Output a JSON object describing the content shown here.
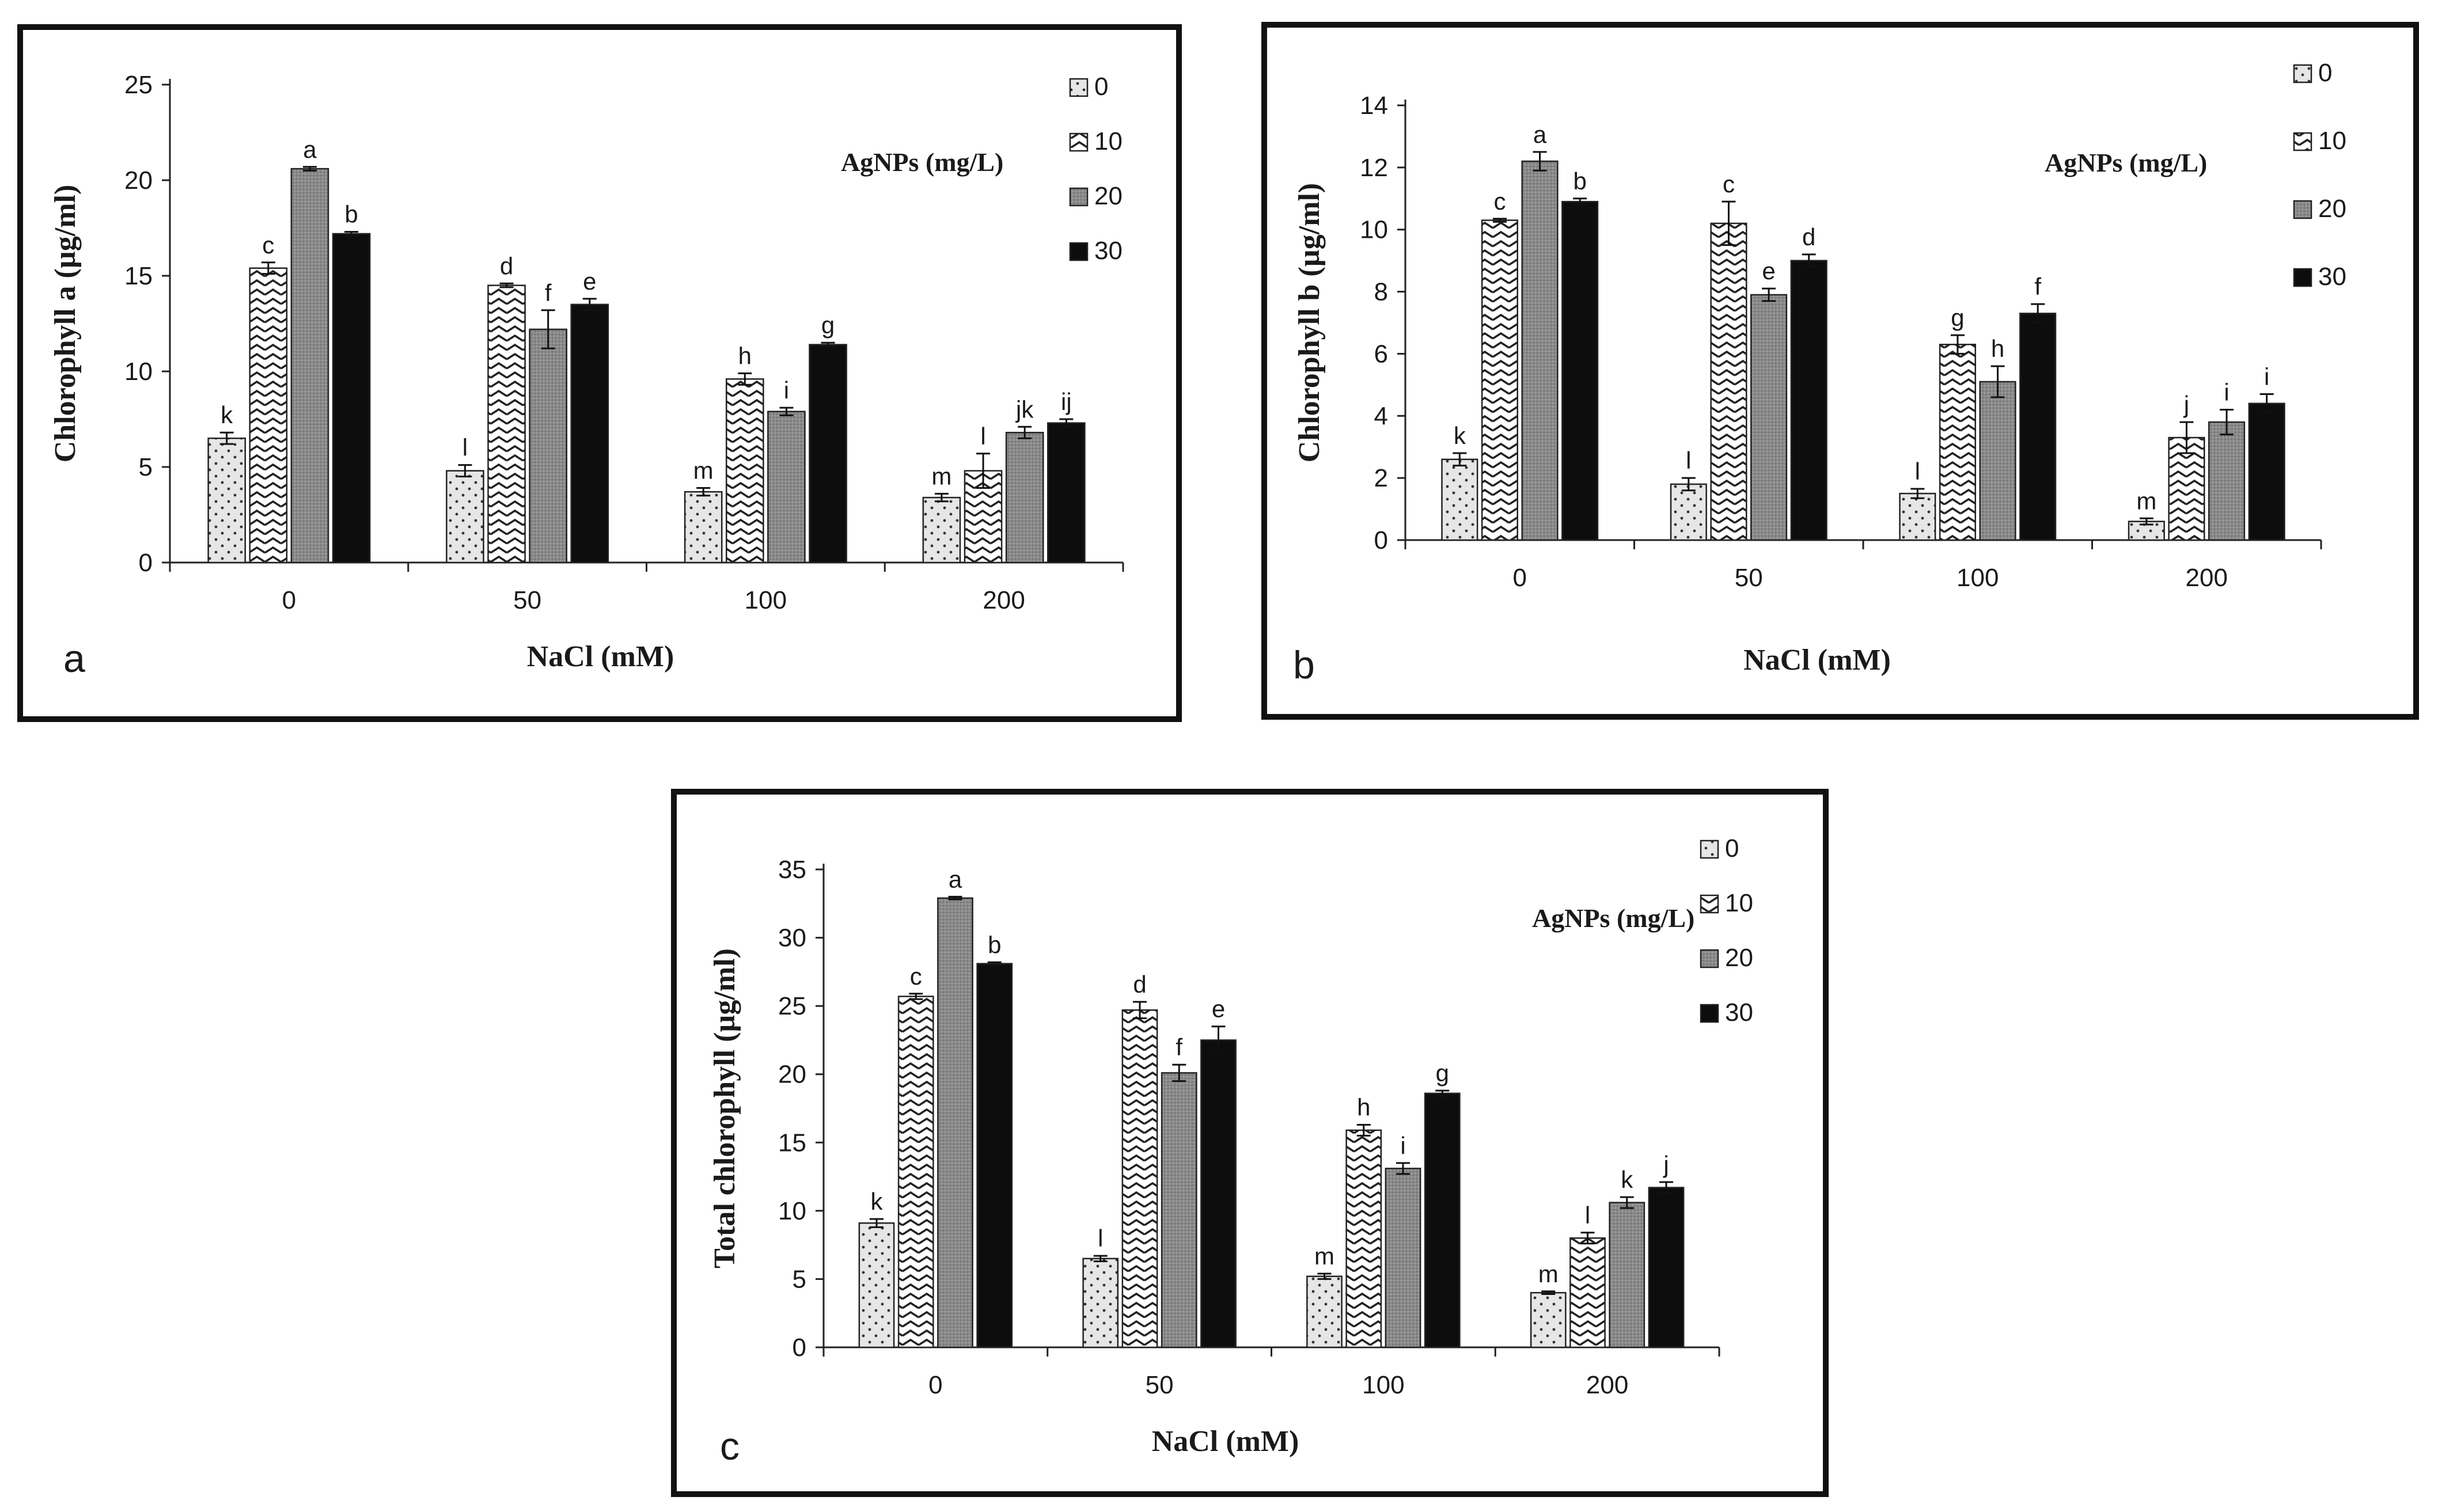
{
  "chart_data": [
    {
      "type": "bar",
      "panel_label": "a",
      "title": "",
      "xlabel": "NaCl (mM)",
      "ylabel": "Chlorophyll a (µg/ml)",
      "ylim": [
        0,
        25
      ],
      "yticks": [
        "0",
        "5",
        "10",
        "15",
        "20",
        "25"
      ],
      "categories": [
        "0",
        "50",
        "100",
        "200"
      ],
      "legend_title": "AgNPs (mg/L)",
      "legend_position": "top-right",
      "series": [
        {
          "name": "0",
          "values": [
            6.5,
            4.8,
            3.7,
            3.4
          ],
          "errors": [
            0.3,
            0.3,
            0.2,
            0.2
          ],
          "letters": [
            "k",
            "l",
            "m",
            "m"
          ]
        },
        {
          "name": "10",
          "values": [
            15.4,
            14.5,
            9.6,
            4.8
          ],
          "errors": [
            0.3,
            0.1,
            0.3,
            0.9
          ],
          "letters": [
            "c",
            "d",
            "h",
            "l"
          ]
        },
        {
          "name": "20",
          "values": [
            20.6,
            12.2,
            7.9,
            6.8
          ],
          "errors": [
            0.1,
            1.0,
            0.2,
            0.3
          ],
          "letters": [
            "a",
            "f",
            "i",
            "jk"
          ]
        },
        {
          "name": "30",
          "values": [
            17.2,
            13.5,
            11.4,
            7.3
          ],
          "errors": [
            0.1,
            0.3,
            0.1,
            0.2
          ],
          "letters": [
            "b",
            "e",
            "g",
            "ij"
          ]
        }
      ]
    },
    {
      "type": "bar",
      "panel_label": "b",
      "title": "",
      "xlabel": "NaCl (mM)",
      "ylabel": "Chlorophyll b (µg/ml)",
      "ylim": [
        0,
        14
      ],
      "yticks": [
        "0",
        "2",
        "4",
        "6",
        "8",
        "10",
        "12",
        "14"
      ],
      "categories": [
        "0",
        "50",
        "100",
        "200"
      ],
      "legend_title": "AgNPs (mg/L)",
      "legend_position": "top-right",
      "series": [
        {
          "name": "0",
          "values": [
            2.6,
            1.8,
            1.5,
            0.6
          ],
          "errors": [
            0.2,
            0.2,
            0.15,
            0.1
          ],
          "letters": [
            "k",
            "l",
            "l",
            "m"
          ]
        },
        {
          "name": "10",
          "values": [
            10.3,
            10.2,
            6.3,
            3.3
          ],
          "errors": [
            0.05,
            0.7,
            0.3,
            0.5
          ],
          "letters": [
            "c",
            "c",
            "g",
            "j"
          ]
        },
        {
          "name": "20",
          "values": [
            12.2,
            7.9,
            5.1,
            3.8
          ],
          "errors": [
            0.3,
            0.2,
            0.5,
            0.4
          ],
          "letters": [
            "a",
            "e",
            "h",
            "i"
          ]
        },
        {
          "name": "30",
          "values": [
            10.9,
            9.0,
            7.3,
            4.4
          ],
          "errors": [
            0.1,
            0.2,
            0.3,
            0.3
          ],
          "letters": [
            "b",
            "d",
            "f",
            "i"
          ]
        }
      ]
    },
    {
      "type": "bar",
      "panel_label": "c",
      "title": "",
      "xlabel": "NaCl (mM)",
      "ylabel": "Total chlorophyll (µg/ml)",
      "ylim": [
        0,
        35
      ],
      "yticks": [
        "0",
        "5",
        "10",
        "15",
        "20",
        "25",
        "30",
        "35"
      ],
      "categories": [
        "0",
        "50",
        "100",
        "200"
      ],
      "legend_title": "AgNPs (mg/L)",
      "legend_position": "top-right",
      "series": [
        {
          "name": "0",
          "values": [
            9.1,
            6.5,
            5.2,
            4.0
          ],
          "errors": [
            0.3,
            0.2,
            0.2,
            0.1
          ],
          "letters": [
            "k",
            "l",
            "m",
            "m"
          ]
        },
        {
          "name": "10",
          "values": [
            25.7,
            24.7,
            15.9,
            8.0
          ],
          "errors": [
            0.2,
            0.6,
            0.4,
            0.4
          ],
          "letters": [
            "c",
            "d",
            "h",
            "l"
          ]
        },
        {
          "name": "20",
          "values": [
            32.9,
            20.1,
            13.1,
            10.6
          ],
          "errors": [
            0.1,
            0.6,
            0.4,
            0.4
          ],
          "letters": [
            "a",
            "f",
            "i",
            "k"
          ]
        },
        {
          "name": "30",
          "values": [
            28.1,
            22.5,
            18.6,
            11.7
          ],
          "errors": [
            0.1,
            1.0,
            0.2,
            0.4
          ],
          "letters": [
            "b",
            "e",
            "g",
            "j"
          ]
        }
      ]
    }
  ],
  "colors": {
    "series_0": "#e6e6e6",
    "series_1": "#ffffff",
    "series_2": "#8a8a8a",
    "series_3": "#0d0d0d"
  }
}
